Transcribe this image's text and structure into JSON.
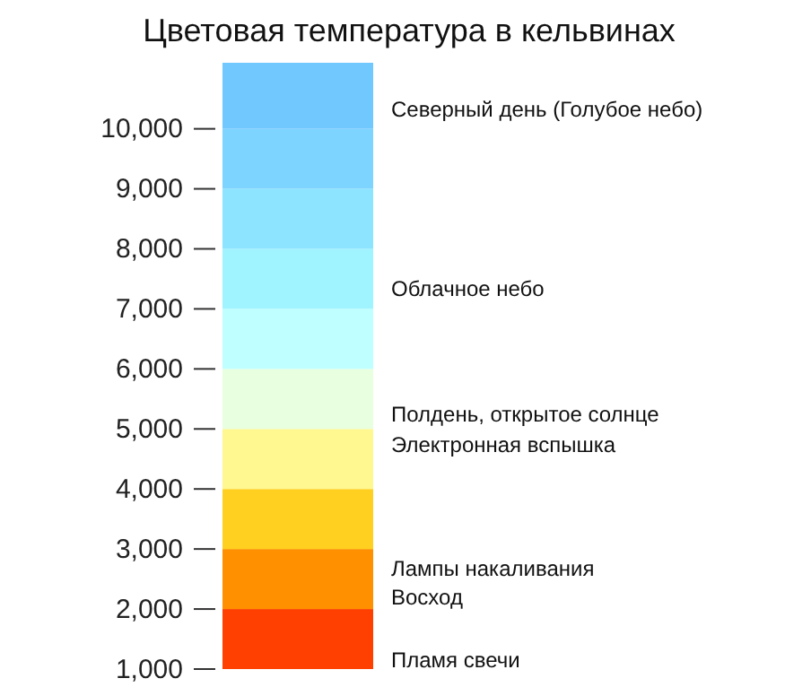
{
  "chart_data": {
    "type": "bar",
    "title": "Цветовая температура в кельвинах",
    "stacked": true,
    "categories": [
      null
    ],
    "series": [
      {
        "color": "#ff4000",
        "values": [
          2000
        ]
      },
      {
        "color": "#ff9000",
        "values": [
          1000
        ]
      },
      {
        "color": "#ffd020",
        "values": [
          1000
        ]
      },
      {
        "color": "#fff890",
        "values": [
          1000
        ]
      },
      {
        "color": "#e8ffe0",
        "values": [
          1000
        ]
      },
      {
        "color": "#c0ffff",
        "values": [
          1000
        ]
      },
      {
        "color": "#a0f4ff",
        "values": [
          1000
        ]
      },
      {
        "color": "#8ce4ff",
        "values": [
          1000
        ]
      },
      {
        "color": "#7cd4ff",
        "values": [
          1000
        ]
      },
      {
        "color": "#70c8ff",
        "values": [
          1100
        ]
      }
    ],
    "ylim": [
      1000,
      11100
    ],
    "yticks": [
      {
        "value": 1000,
        "label": "1,000"
      },
      {
        "value": 2000,
        "label": "2,000"
      },
      {
        "value": 3000,
        "label": "3,000"
      },
      {
        "value": 4000,
        "label": "4,000"
      },
      {
        "value": 5000,
        "label": "5,000"
      },
      {
        "value": 6000,
        "label": "6,000"
      },
      {
        "value": 7000,
        "label": "7,000"
      },
      {
        "value": 8000,
        "label": "8,000"
      },
      {
        "value": 9000,
        "label": "9,000"
      },
      {
        "value": 10000,
        "label": "10,000"
      }
    ],
    "annotations": [
      "Северный день (Голубое небо)",
      "Облачное небо",
      "Полдень, открытое солнце",
      "Электронная вспышка",
      "Лампы накаливания",
      "Восход",
      "Пламя свечи"
    ]
  }
}
